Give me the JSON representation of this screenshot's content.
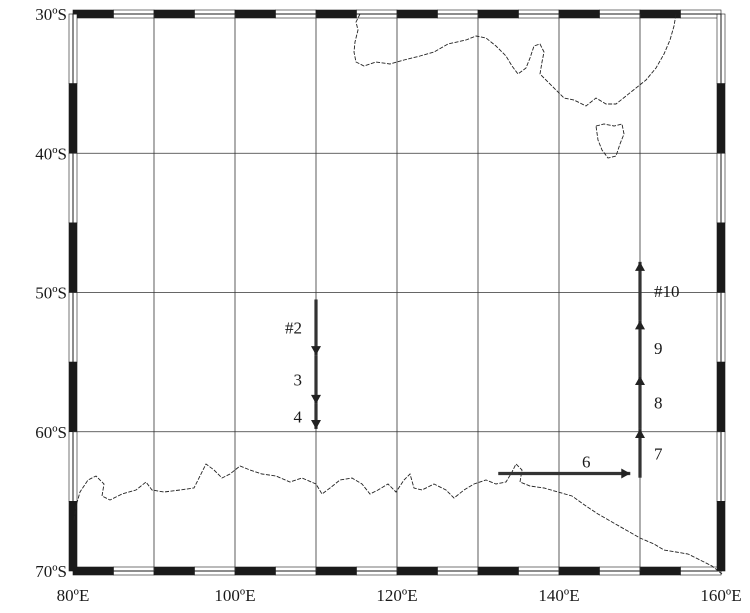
{
  "map": {
    "lat_labels": [
      "30ºS",
      "40ºS",
      "50ºS",
      "60ºS",
      "70ºS"
    ],
    "lon_labels": [
      "80ºE",
      "100ºE",
      "120ºE",
      "140ºE",
      "160ºE"
    ],
    "tracks": [
      {
        "label": "#2",
        "from": [
          110,
          -50.5
        ],
        "to": [
          110,
          -54.5
        ],
        "side": "left"
      },
      {
        "label": "3",
        "from": [
          110,
          -54.5
        ],
        "to": [
          110,
          -58
        ],
        "side": "left"
      },
      {
        "label": "4",
        "from": [
          110,
          -58
        ],
        "to": [
          110,
          -59.8
        ],
        "side": "left"
      },
      {
        "label": "6",
        "from": [
          132.5,
          -63
        ],
        "to": [
          148.8,
          -63
        ],
        "side": "above"
      },
      {
        "label": "7",
        "from": [
          150,
          -63.3
        ],
        "to": [
          150,
          -59.8
        ],
        "side": "right"
      },
      {
        "label": "8",
        "from": [
          150,
          -59.8
        ],
        "to": [
          150,
          -56
        ],
        "side": "right"
      },
      {
        "label": "9",
        "from": [
          150,
          -56
        ],
        "to": [
          150,
          -52
        ],
        "side": "right"
      },
      {
        "label": "#10",
        "from": [
          150,
          -52
        ],
        "to": [
          150,
          -47.8
        ],
        "side": "right"
      }
    ]
  }
}
